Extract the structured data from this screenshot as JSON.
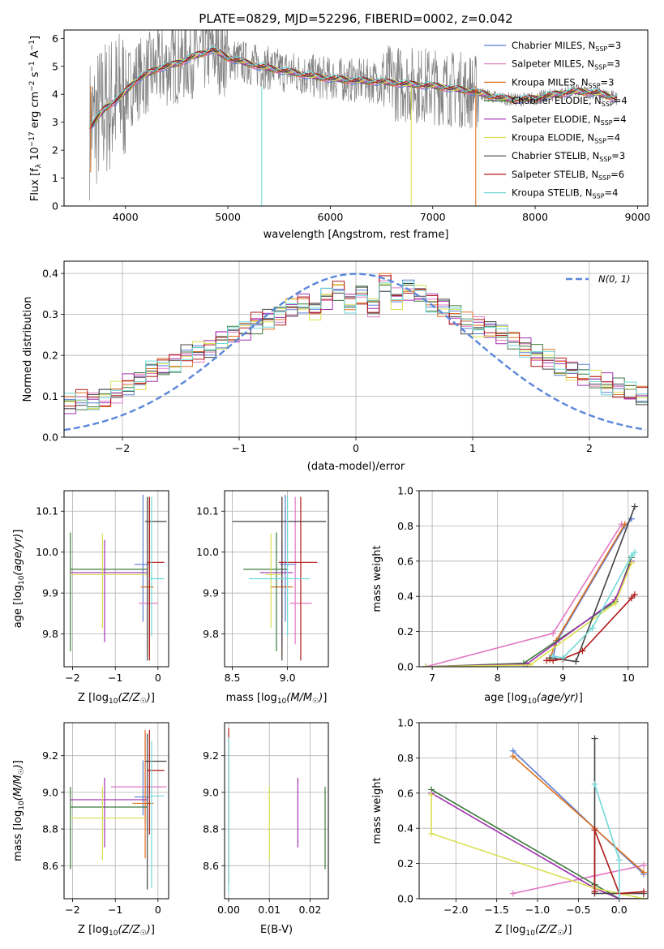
{
  "colors": {
    "chabrier_miles": "#5b7fd3",
    "salpeter_miles": "#e377c2",
    "kroupa_miles": "#e07020",
    "chabrier_elodie": "#3c7a3c",
    "salpeter_elodie": "#a030b0",
    "kroupa_elodie": "#d8e050",
    "chabrier_stelib": "#444444",
    "salpeter_stelib": "#b01818",
    "kroupa_stelib": "#70d8d8",
    "data": "#808080",
    "normal": "#5b87db"
  },
  "chart_data": [
    {
      "id": "spectrum",
      "type": "line",
      "title": "PLATE=0829, MJD=52296, FIBERID=0002, z=0.042",
      "xlabel": "wavelength [Angstrom, rest frame]",
      "ylabel": "Flux [f_λ 10^-17 erg cm^-2 s^-1 A^-1]",
      "xlim": [
        3400,
        9100
      ],
      "ylim": [
        0,
        6.3
      ],
      "xticks": [
        "4000",
        "5000",
        "6000",
        "7000",
        "8000",
        "9000"
      ],
      "yticks": [
        "0",
        "1",
        "2",
        "3",
        "4",
        "5",
        "6"
      ],
      "legend_position": "top-right",
      "legend": [
        {
          "label": "Chabrier MILES, N",
          "sub": "SSP",
          "tail": "=3",
          "color": "chabrier_miles"
        },
        {
          "label": "Salpeter MILES, N",
          "sub": "SSP",
          "tail": "=3",
          "color": "salpeter_miles"
        },
        {
          "label": "Kroupa MILES, N",
          "sub": "SSP",
          "tail": "=3",
          "color": "kroupa_miles"
        },
        {
          "label": "Chabrier ELODIE, N",
          "sub": "SSP",
          "tail": "=4",
          "color": "chabrier_elodie"
        },
        {
          "label": "Salpeter ELODIE, N",
          "sub": "SSP",
          "tail": "=4",
          "color": "salpeter_elodie"
        },
        {
          "label": "Kroupa ELODIE, N",
          "sub": "SSP",
          "tail": "=4",
          "color": "kroupa_elodie"
        },
        {
          "label": "Chabrier STELIB, N",
          "sub": "SSP",
          "tail": "=3",
          "color": "chabrier_stelib"
        },
        {
          "label": "Salpeter STELIB, N",
          "sub": "SSP",
          "tail": "=6",
          "color": "salpeter_stelib"
        },
        {
          "label": "Kroupa STELIB, N",
          "sub": "SSP",
          "tail": "=4",
          "color": "kroupa_stelib"
        }
      ],
      "model_curve": {
        "x": [
          3650,
          3800,
          3950,
          4100,
          4300,
          4500,
          4700,
          4850,
          5000,
          5300,
          5600,
          5900,
          6200,
          6500,
          6800,
          7000,
          7200,
          7400,
          7600,
          7800,
          8000,
          8200,
          8400,
          8600,
          8800
        ],
        "y": [
          2.8,
          3.5,
          3.9,
          4.5,
          4.9,
          5.1,
          5.4,
          5.6,
          5.3,
          5.0,
          4.8,
          4.6,
          4.5,
          4.45,
          4.35,
          4.3,
          4.2,
          4.1,
          3.9,
          3.8,
          3.85,
          4.0,
          4.1,
          4.05,
          3.85
        ]
      },
      "data_drops": [
        {
          "x": 5330,
          "y": 0,
          "color": "kroupa_stelib"
        },
        {
          "x": 6790,
          "y": 0,
          "color": "kroupa_elodie"
        },
        {
          "x": 7420,
          "y": 0,
          "color": "kroupa_miles"
        },
        {
          "x": 3660,
          "y": 1.2,
          "color": "kroupa_miles"
        }
      ]
    },
    {
      "id": "residual-histogram",
      "type": "bar",
      "xlabel": "(data-model)/error",
      "ylabel": "Normed distribution",
      "xlim": [
        -2.5,
        2.5
      ],
      "ylim": [
        0,
        0.43
      ],
      "xticks": [
        "−2",
        "−1",
        "0",
        "1",
        "2"
      ],
      "yticks": [
        "0.0",
        "0.1",
        "0.2",
        "0.3",
        "0.4"
      ],
      "legend_position": "top-right",
      "legend": [
        {
          "label": "N(0, 1)",
          "color": "normal",
          "dash": true
        }
      ],
      "bin_width": 0.1,
      "base_values": [
        0.04,
        0.045,
        0.05,
        0.06,
        0.07,
        0.08,
        0.09,
        0.085,
        0.095,
        0.11,
        0.13,
        0.14,
        0.16,
        0.17,
        0.18,
        0.2,
        0.21,
        0.22,
        0.24,
        0.25,
        0.26,
        0.28,
        0.29,
        0.3,
        0.32,
        0.33,
        0.31,
        0.34,
        0.36,
        0.33,
        0.35,
        0.32,
        0.38,
        0.34,
        0.36,
        0.35,
        0.33,
        0.32,
        0.3,
        0.28,
        0.27,
        0.26,
        0.25,
        0.24,
        0.22,
        0.2,
        0.19,
        0.17,
        0.16,
        0.15,
        0.14,
        0.13,
        0.12,
        0.11,
        0.1,
        0.09,
        0.085,
        0.08,
        0.075,
        0.07,
        0.07,
        0.065,
        0.065,
        0.06,
        0.06,
        0.055,
        0.06,
        0.055,
        0.05,
        0.06,
        0.055,
        0.05,
        0.06,
        0.05,
        0.055,
        0.05,
        0.08,
        0.05,
        0.06,
        0.06
      ],
      "x_start": -3.0
    },
    {
      "id": "age-vs-z",
      "type": "scatter",
      "xlabel": "Z [log10(Z/Z☉)]",
      "ylabel": "age  [log10(age/yr)]",
      "xlim": [
        -2.2,
        0.25
      ],
      "ylim": [
        9.72,
        10.15
      ],
      "xticks": [
        "−2",
        "−1",
        "0"
      ],
      "yticks": [
        "9.8",
        "9.9",
        "10.0",
        "10.1"
      ],
      "points": [
        {
          "x": -0.35,
          "y": 9.97,
          "xerr": [
            0.2,
            0.15
          ],
          "yerr": [
            0.14,
            0.17
          ],
          "color": "chabrier_miles"
        },
        {
          "x": -0.2,
          "y": 9.875,
          "xerr": [
            0.25,
            0.2
          ],
          "yerr": [
            0.1,
            0.26
          ],
          "color": "salpeter_miles"
        },
        {
          "x": -0.2,
          "y": 9.915,
          "xerr": [
            0.2,
            0.1
          ],
          "yerr": [
            0.17,
            0.22
          ],
          "color": "kroupa_miles"
        },
        {
          "x": -2.05,
          "y": 9.958,
          "xerr": [
            0.0,
            1.8
          ],
          "yerr": [
            0.2,
            0.09
          ],
          "color": "chabrier_elodie"
        },
        {
          "x": -1.25,
          "y": 9.95,
          "xerr": [
            0.8,
            1.0
          ],
          "yerr": [
            0.17,
            0.08
          ],
          "color": "salpeter_elodie"
        },
        {
          "x": -1.3,
          "y": 9.945,
          "xerr": [
            0.75,
            1.05
          ],
          "yerr": [
            0.13,
            0.1
          ],
          "color": "kroupa_elodie"
        },
        {
          "x": -0.25,
          "y": 10.075,
          "xerr": [
            0.05,
            0.45
          ],
          "yerr": [
            0.34,
            0.06
          ],
          "color": "chabrier_stelib"
        },
        {
          "x": -0.2,
          "y": 9.975,
          "xerr": [
            0.05,
            0.35
          ],
          "yerr": [
            0.24,
            0.16
          ],
          "color": "salpeter_stelib"
        },
        {
          "x": -0.15,
          "y": 9.935,
          "xerr": [
            0.05,
            0.3
          ],
          "yerr": [
            0.14,
            0.2
          ],
          "color": "kroupa_stelib"
        }
      ]
    },
    {
      "id": "age-vs-mass",
      "type": "scatter",
      "xlabel": "mass [log10(M/M☉)]",
      "ylabel": "",
      "xlim": [
        8.43,
        9.37
      ],
      "ylim": [
        9.72,
        10.15
      ],
      "xticks": [
        "8.5",
        "9.0"
      ],
      "yticks": [
        "9.8",
        "9.9",
        "10.0",
        "10.1"
      ],
      "points": [
        {
          "x": 8.98,
          "y": 9.97,
          "xerr": [
            0.05,
            0.1
          ],
          "yerr": [
            0.14,
            0.17
          ],
          "color": "chabrier_miles"
        },
        {
          "x": 9.07,
          "y": 9.875,
          "xerr": [
            0.05,
            0.15
          ],
          "yerr": [
            0.1,
            0.26
          ],
          "color": "salpeter_miles"
        },
        {
          "x": 8.95,
          "y": 9.915,
          "xerr": [
            0.1,
            0.1
          ],
          "yerr": [
            0.17,
            0.22
          ],
          "color": "kroupa_miles"
        },
        {
          "x": 8.9,
          "y": 9.958,
          "xerr": [
            0.3,
            0.1
          ],
          "yerr": [
            0.2,
            0.09
          ],
          "color": "chabrier_elodie"
        },
        {
          "x": 8.95,
          "y": 9.95,
          "xerr": [
            0.2,
            0.1
          ],
          "yerr": [
            0.17,
            0.08
          ],
          "color": "salpeter_elodie"
        },
        {
          "x": 8.85,
          "y": 9.945,
          "xerr": [
            0.05,
            0.1
          ],
          "yerr": [
            0.13,
            0.1
          ],
          "color": "kroupa_elodie"
        },
        {
          "x": 8.95,
          "y": 10.075,
          "xerr": [
            0.45,
            0.4
          ],
          "yerr": [
            0.34,
            0.06
          ],
          "color": "chabrier_stelib"
        },
        {
          "x": 9.12,
          "y": 9.975,
          "xerr": [
            0.2,
            0.15
          ],
          "yerr": [
            0.24,
            0.16
          ],
          "color": "salpeter_stelib"
        },
        {
          "x": 9.0,
          "y": 9.935,
          "xerr": [
            0.35,
            0.2
          ],
          "yerr": [
            0.14,
            0.2
          ],
          "color": "kroupa_stelib"
        }
      ]
    },
    {
      "id": "mass-weight-vs-age",
      "type": "line",
      "xlabel": "age  [log10(age/yr)]",
      "ylabel": "mass weight",
      "xlim": [
        6.8,
        10.3
      ],
      "ylim": [
        0,
        1
      ],
      "xticks": [
        "7",
        "8",
        "9",
        "10"
      ],
      "yticks": [
        "0.0",
        "0.2",
        "0.4",
        "0.6",
        "0.8",
        "1.0"
      ],
      "series": [
        {
          "color": "chabrier_miles",
          "x": [
            8.85,
            8.9,
            9.95,
            10.05
          ],
          "y": [
            0.05,
            0.14,
            0.8,
            0.84
          ]
        },
        {
          "color": "salpeter_miles",
          "x": [
            6.9,
            8.85,
            9.9
          ],
          "y": [
            0.0,
            0.19,
            0.81
          ]
        },
        {
          "color": "kroupa_miles",
          "x": [
            8.8,
            8.9,
            9.95
          ],
          "y": [
            0.04,
            0.15,
            0.81
          ]
        },
        {
          "color": "chabrier_elodie",
          "x": [
            6.9,
            8.4,
            9.8,
            10.05
          ],
          "y": [
            0.0,
            0.02,
            0.37,
            0.62
          ]
        },
        {
          "color": "salpeter_elodie",
          "x": [
            6.9,
            8.45,
            9.8,
            10.05
          ],
          "y": [
            0.0,
            0.015,
            0.38,
            0.6
          ]
        },
        {
          "color": "kroupa_elodie",
          "x": [
            6.9,
            8.5,
            9.8,
            10.05
          ],
          "y": [
            0.0,
            0.01,
            0.36,
            0.59
          ]
        },
        {
          "color": "chabrier_stelib",
          "x": [
            8.8,
            9.2,
            10.1
          ],
          "y": [
            0.05,
            0.03,
            0.91
          ]
        },
        {
          "color": "salpeter_stelib",
          "x": [
            8.75,
            8.85,
            9.0,
            9.3,
            10.05,
            10.1
          ],
          "y": [
            0.035,
            0.035,
            0.045,
            0.09,
            0.39,
            0.41
          ]
        },
        {
          "color": "kroupa_stelib",
          "x": [
            8.85,
            9.0,
            9.45,
            10.05,
            10.1
          ],
          "y": [
            0.06,
            0.05,
            0.22,
            0.63,
            0.65
          ]
        }
      ]
    },
    {
      "id": "mass-vs-z",
      "type": "scatter",
      "xlabel": "Z [log10(Z/Z☉)]",
      "ylabel": "mass [log10(M/M☉)]",
      "xlim": [
        -2.2,
        0.25
      ],
      "ylim": [
        8.42,
        9.38
      ],
      "xticks": [
        "−2",
        "−1",
        "0"
      ],
      "yticks": [
        "8.6",
        "8.8",
        "9.0",
        "9.2"
      ],
      "points": [
        {
          "x": -0.35,
          "y": 8.975,
          "xerr": [
            0.2,
            0.15
          ],
          "yerr": [
            0.1,
            0.2
          ],
          "color": "chabrier_miles"
        },
        {
          "x": -0.3,
          "y": 9.03,
          "xerr": [
            0.8,
            0.5
          ],
          "yerr": [
            0.2,
            0.3
          ],
          "color": "salpeter_miles"
        },
        {
          "x": -0.3,
          "y": 8.94,
          "xerr": [
            0.3,
            0.2
          ],
          "yerr": [
            0.3,
            0.4
          ],
          "color": "kroupa_miles"
        },
        {
          "x": -2.05,
          "y": 8.92,
          "xerr": [
            0.0,
            1.8
          ],
          "yerr": [
            0.34,
            0.11
          ],
          "color": "chabrier_elodie"
        },
        {
          "x": -1.25,
          "y": 8.96,
          "xerr": [
            0.8,
            1.0
          ],
          "yerr": [
            0.26,
            0.12
          ],
          "color": "salpeter_elodie"
        },
        {
          "x": -1.3,
          "y": 8.86,
          "xerr": [
            0.75,
            1.05
          ],
          "yerr": [
            0.23,
            0.17
          ],
          "color": "kroupa_elodie"
        },
        {
          "x": -0.25,
          "y": 9.17,
          "xerr": [
            0.05,
            0.45
          ],
          "yerr": [
            0.7,
            0.15
          ],
          "color": "chabrier_stelib"
        },
        {
          "x": -0.2,
          "y": 9.12,
          "xerr": [
            0.05,
            0.35
          ],
          "yerr": [
            0.35,
            0.22
          ],
          "color": "salpeter_stelib"
        },
        {
          "x": -0.15,
          "y": 8.98,
          "xerr": [
            0.05,
            0.3
          ],
          "yerr": [
            0.5,
            0.3
          ],
          "color": "kroupa_stelib"
        }
      ]
    },
    {
      "id": "mass-vs-ebv",
      "type": "scatter",
      "xlabel": "E(B-V)",
      "ylabel": "",
      "xlim": [
        -0.001,
        0.0245
      ],
      "ylim": [
        8.42,
        9.38
      ],
      "xticks": [
        "0.00",
        "0.01",
        "0.02"
      ],
      "yticks": [
        "8.6",
        "8.8",
        "9.0",
        "9.2"
      ],
      "points": [
        {
          "x": 0.0,
          "y": 9.1,
          "yerr": [
            0.6,
            0.25
          ],
          "color": "salpeter_stelib"
        },
        {
          "x": 0.0,
          "y": 8.95,
          "yerr": [
            0.5,
            0.35
          ],
          "color": "kroupa_stelib"
        },
        {
          "x": 0.01,
          "y": 8.85,
          "yerr": [
            0.22,
            0.18
          ],
          "color": "kroupa_elodie"
        },
        {
          "x": 0.017,
          "y": 8.9,
          "yerr": [
            0.2,
            0.18
          ],
          "color": "salpeter_elodie"
        },
        {
          "x": 0.0237,
          "y": 8.8,
          "yerr": [
            0.22,
            0.23
          ],
          "color": "chabrier_elodie"
        }
      ]
    },
    {
      "id": "mass-weight-vs-z",
      "type": "line",
      "xlabel": "Z [log10(Z/Z☉)]",
      "ylabel": "mass weight",
      "xlim": [
        -2.45,
        0.35
      ],
      "ylim": [
        0,
        1
      ],
      "xticks": [
        "−2.0",
        "−1.5",
        "−1.0",
        "−0.5",
        "0.0"
      ],
      "yticks": [
        "0.0",
        "0.2",
        "0.4",
        "0.6",
        "0.8",
        "1.0"
      ],
      "series": [
        {
          "color": "chabrier_miles",
          "x": [
            -1.3,
            -0.3,
            0.3
          ],
          "y": [
            0.84,
            0.4,
            0.14
          ]
        },
        {
          "color": "salpeter_miles",
          "x": [
            -1.3,
            -0.3,
            0.3
          ],
          "y": [
            0.03,
            0.13,
            0.19
          ]
        },
        {
          "color": "kroupa_miles",
          "x": [
            -1.3,
            -0.3,
            0.3
          ],
          "y": [
            0.81,
            0.4,
            0.15
          ]
        },
        {
          "color": "chabrier_elodie",
          "x": [
            -2.3,
            -0.3,
            0.0,
            0.3
          ],
          "y": [
            0.62,
            0.08,
            0.0,
            0.0
          ]
        },
        {
          "color": "salpeter_elodie",
          "x": [
            -2.3,
            -0.3,
            0.0,
            0.3
          ],
          "y": [
            0.6,
            0.06,
            0.0,
            0.0
          ]
        },
        {
          "color": "kroupa_elodie",
          "x": [
            -2.3,
            -2.3,
            -0.3,
            0.3
          ],
          "y": [
            0.59,
            0.37,
            0.06,
            0.0
          ]
        },
        {
          "color": "chabrier_stelib",
          "x": [
            -0.3,
            -0.3,
            0.3
          ],
          "y": [
            0.91,
            0.03,
            0.03
          ]
        },
        {
          "color": "salpeter_stelib",
          "x": [
            -0.3,
            -0.3,
            -0.3,
            0.0,
            0.3
          ],
          "y": [
            0.04,
            0.04,
            0.39,
            0.03,
            0.04
          ]
        },
        {
          "color": "kroupa_stelib",
          "x": [
            -0.3,
            0.0,
            0.0
          ],
          "y": [
            0.65,
            0.22,
            0.0
          ]
        }
      ]
    }
  ]
}
